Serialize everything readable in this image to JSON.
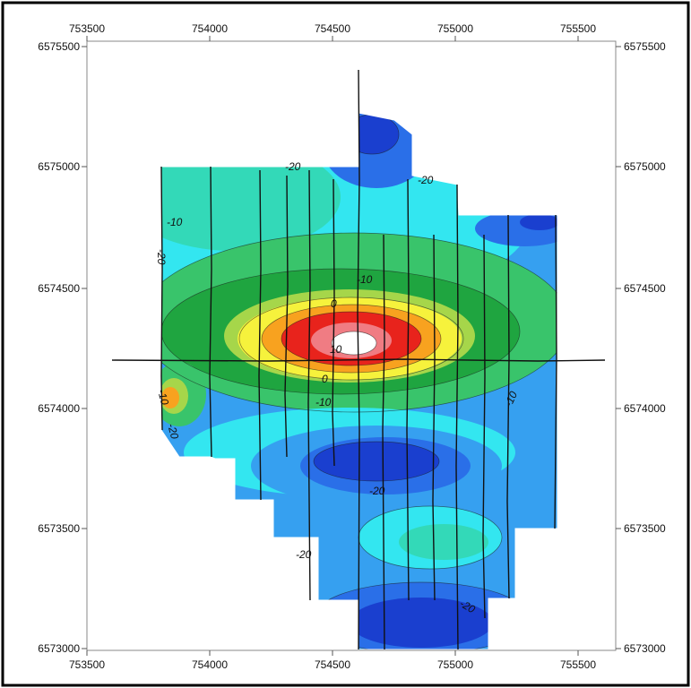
{
  "map": {
    "x_ticks": [
      "753500",
      "754000",
      "754500",
      "755000",
      "755500"
    ],
    "y_ticks": [
      "6575500",
      "6575000",
      "6574500",
      "6574000",
      "6573500",
      "6573000"
    ],
    "contour_labels": [
      "-20",
      "-20",
      "-10",
      "-20",
      "-10",
      "0",
      "10",
      "0",
      "-10",
      "-10",
      "-10",
      "-20",
      "-20",
      "-20",
      "-20"
    ],
    "colors": {
      "deep_blue": "#1a3fcf",
      "blue": "#2a6fe8",
      "sky": "#36a0f0",
      "cyan": "#33e6f0",
      "aqua": "#33d9b8",
      "green_light": "#39c46b",
      "green": "#1fa540",
      "yellow_green": "#a6d64a",
      "yellow": "#f6f23c",
      "orange": "#f8a21f",
      "red": "#e8231c",
      "pink": "#f07c83",
      "white": "#ffffff"
    }
  }
}
